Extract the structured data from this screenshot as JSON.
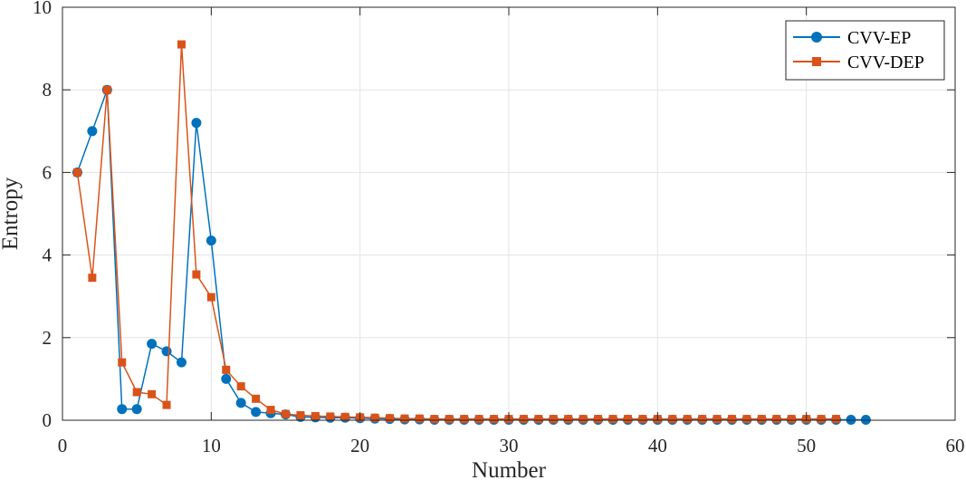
{
  "chart_data": {
    "type": "line",
    "xlabel": "Number",
    "ylabel": "Entropy",
    "xlim": [
      0,
      60
    ],
    "ylim": [
      0,
      10
    ],
    "xticks": [
      "0",
      "10",
      "20",
      "30",
      "40",
      "50",
      "60"
    ],
    "yticks": [
      "0",
      "2",
      "4",
      "6",
      "8",
      "10"
    ],
    "grid": true,
    "legend_position": "top-right",
    "series": [
      {
        "name": "CVV-EP",
        "color": "#0072BD",
        "marker": "circle",
        "x": [
          1,
          2,
          3,
          4,
          5,
          6,
          7,
          8,
          9,
          10,
          11,
          12,
          13,
          14,
          15,
          16,
          17,
          18,
          19,
          20,
          21,
          22,
          23,
          24,
          25,
          26,
          27,
          28,
          29,
          30,
          31,
          32,
          33,
          34,
          35,
          36,
          37,
          38,
          39,
          40,
          41,
          42,
          43,
          44,
          45,
          46,
          47,
          48,
          49,
          50,
          51,
          52,
          53,
          54
        ],
        "y": [
          6.0,
          7.0,
          8.0,
          0.27,
          0.27,
          1.85,
          1.67,
          1.4,
          7.2,
          4.35,
          1.0,
          0.42,
          0.2,
          0.17,
          0.14,
          0.08,
          0.07,
          0.06,
          0.06,
          0.05,
          0.04,
          0.03,
          0.02,
          0.02,
          0.01,
          0.01,
          0.01,
          0.01,
          0.01,
          0.01,
          0.01,
          0.01,
          0.01,
          0.01,
          0.01,
          0.01,
          0.01,
          0.01,
          0.01,
          0.01,
          0.01,
          0.01,
          0.01,
          0.01,
          0.01,
          0.01,
          0.01,
          0.01,
          0.01,
          0.01,
          0.01,
          0.01,
          0.01,
          0.01
        ]
      },
      {
        "name": "CVV-DEP",
        "color": "#D95319",
        "marker": "square",
        "x": [
          1,
          2,
          3,
          4,
          5,
          6,
          7,
          8,
          9,
          10,
          11,
          12,
          13,
          14,
          15,
          16,
          17,
          18,
          19,
          20,
          21,
          22,
          23,
          24,
          25,
          26,
          27,
          28,
          29,
          30,
          31,
          32,
          33,
          34,
          35,
          36,
          37,
          38,
          39,
          40,
          41,
          42,
          43,
          44,
          45,
          46,
          47,
          48,
          49,
          50,
          51,
          52
        ],
        "y": [
          6.0,
          3.45,
          8.0,
          1.4,
          0.68,
          0.63,
          0.37,
          9.1,
          3.53,
          2.98,
          1.22,
          0.82,
          0.52,
          0.25,
          0.15,
          0.12,
          0.1,
          0.09,
          0.08,
          0.07,
          0.06,
          0.05,
          0.04,
          0.04,
          0.03,
          0.03,
          0.03,
          0.03,
          0.03,
          0.03,
          0.03,
          0.03,
          0.03,
          0.03,
          0.03,
          0.03,
          0.03,
          0.03,
          0.03,
          0.03,
          0.03,
          0.03,
          0.03,
          0.03,
          0.03,
          0.03,
          0.03,
          0.03,
          0.03,
          0.03,
          0.03,
          0.03
        ]
      }
    ]
  }
}
